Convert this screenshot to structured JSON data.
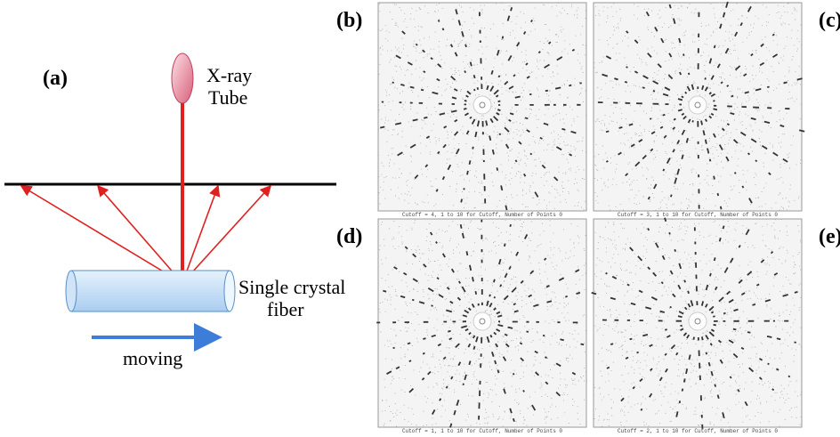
{
  "panel_a": {
    "label": "(a)",
    "source": [
      "X-ray",
      "Tube"
    ],
    "sample": [
      "Single crystal",
      "fiber"
    ],
    "motion": "moving"
  },
  "panels": [
    {
      "label": "(b)",
      "caption": "Cutoff = 4, 1 to 10 for Cutoff, Number of Points 0"
    },
    {
      "label": "(c)",
      "caption": "Cutoff = 3, 1 to 10 for Cutoff, Number of Points 0"
    },
    {
      "label": "(d)",
      "caption": "Cutoff = 1, 1 to 10 for Cutoff, Number of Points 0"
    },
    {
      "label": "(e)",
      "caption": "Cutoff = 2, 1 to 10 for Cutoff, Number of Points 0"
    }
  ]
}
